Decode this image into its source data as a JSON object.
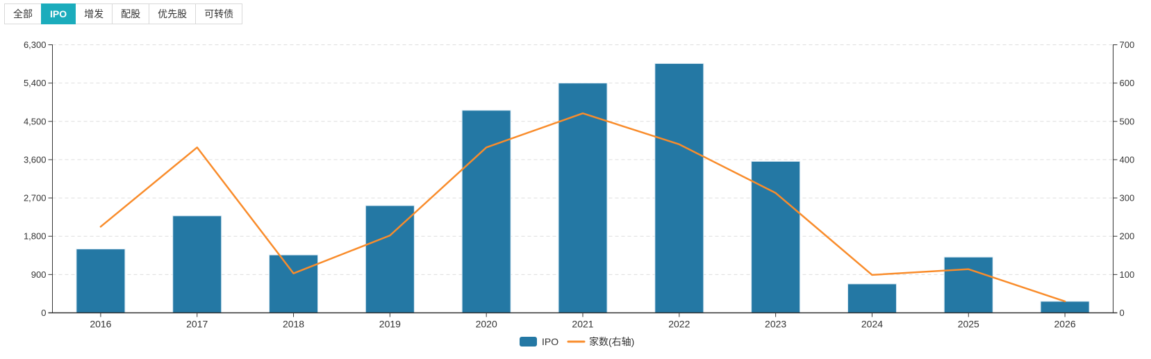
{
  "tabs": {
    "items": [
      {
        "label": "全部",
        "active": false
      },
      {
        "label": "IPO",
        "active": true
      },
      {
        "label": "增发",
        "active": false
      },
      {
        "label": "配股",
        "active": false
      },
      {
        "label": "优先股",
        "active": false
      },
      {
        "label": "可转债",
        "active": false
      }
    ],
    "active_bg_color": "#1BACBC"
  },
  "chart_data": {
    "type": "bar",
    "categories": [
      "2016",
      "2017",
      "2018",
      "2019",
      "2020",
      "2021",
      "2022",
      "2023",
      "2024",
      "2025",
      "2026"
    ],
    "series": [
      {
        "name": "IPO",
        "type": "bar",
        "axis": "left",
        "color": "#2478A4",
        "values": [
          1500,
          2280,
          1360,
          2520,
          4760,
          5400,
          5860,
          3560,
          680,
          1310,
          270
        ]
      },
      {
        "name": "家数(右轴)",
        "type": "line",
        "axis": "right",
        "color": "#F98C2B",
        "values": [
          225,
          432,
          103,
          202,
          432,
          521,
          440,
          313,
          99,
          114,
          30
        ]
      }
    ],
    "left_axis": {
      "min": 0,
      "max": 6300,
      "interval": 900,
      "tick_labels": [
        "0",
        "900",
        "1,800",
        "2,700",
        "3,600",
        "4,500",
        "5,400",
        "6,300"
      ]
    },
    "right_axis": {
      "min": 0,
      "max": 700,
      "interval": 100,
      "tick_labels": [
        "0",
        "100",
        "200",
        "300",
        "400",
        "500",
        "600",
        "700"
      ]
    },
    "grid": {
      "dashed": true,
      "grid_color": "#DDDDDD",
      "axis_color": "#333333"
    },
    "legend": {
      "position": "bottom",
      "entries": [
        "IPO",
        "家数(右轴)"
      ]
    }
  }
}
